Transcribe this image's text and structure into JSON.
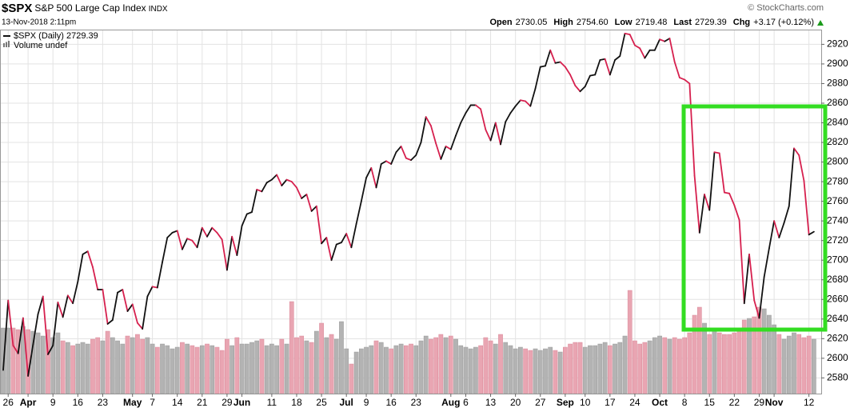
{
  "header": {
    "symbol": "$SPX",
    "name": "S&P 500 Large Cap Index",
    "exchange": "INDX",
    "timestamp": "13-Nov-2018 2:11pm",
    "credit": "© StockCharts.com",
    "quote": [
      {
        "label": "Open",
        "value": "2730.05"
      },
      {
        "label": "High",
        "value": "2754.60"
      },
      {
        "label": "Low",
        "value": "2719.48"
      },
      {
        "label": "Last",
        "value": "2729.39"
      },
      {
        "label": "Chg",
        "value": "+3.17 (+0.12%)"
      }
    ]
  },
  "chart_data": {
    "type": "line",
    "categories": [
      null,
      "26",
      null,
      null,
      null,
      "Apr",
      null,
      null,
      null,
      null,
      "9",
      null,
      null,
      null,
      null,
      "16",
      null,
      null,
      null,
      null,
      "23",
      null,
      null,
      null,
      null,
      null,
      "May",
      null,
      null,
      null,
      "7",
      null,
      null,
      null,
      null,
      "14",
      null,
      null,
      null,
      null,
      "21",
      null,
      null,
      null,
      null,
      "29",
      null,
      null,
      "Jun",
      null,
      null,
      null,
      null,
      null,
      "11",
      null,
      null,
      null,
      null,
      "18",
      null,
      null,
      null,
      null,
      "25",
      null,
      null,
      null,
      null,
      "Jul",
      null,
      null,
      null,
      "9",
      null,
      null,
      null,
      null,
      "16",
      null,
      null,
      null,
      null,
      "23",
      null,
      null,
      null,
      null,
      null,
      null,
      "Aug",
      null,
      null,
      "6",
      null,
      null,
      null,
      null,
      "13",
      null,
      null,
      null,
      null,
      "20",
      null,
      null,
      null,
      null,
      "27",
      null,
      null,
      null,
      null,
      "Sep",
      null,
      null,
      null,
      "10",
      null,
      null,
      null,
      null,
      "17",
      null,
      null,
      null,
      null,
      "24",
      null,
      null,
      null,
      null,
      "Oct",
      null,
      null,
      null,
      null,
      "8",
      null,
      null,
      null,
      null,
      "15",
      null,
      null,
      null,
      null,
      "22",
      null,
      null,
      null,
      null,
      "29",
      null,
      null,
      "Nov",
      null,
      null,
      null,
      null,
      null,
      null,
      "12",
      null
    ],
    "series": [
      {
        "name": "$SPX (Daily) 2729.39",
        "color": "#111111",
        "down_color": "#d6204e",
        "values": [
          2588,
          2659,
          2613,
          2605,
          2641,
          2582,
          2614,
          2645,
          2663,
          2604,
          2613,
          2657,
          2642,
          2664,
          2656,
          2678,
          2706,
          2709,
          2693,
          2670,
          2670,
          2635,
          2639,
          2667,
          2670,
          2648,
          2655,
          2636,
          2630,
          2663,
          2673,
          2672,
          2698,
          2723,
          2728,
          2730,
          2711,
          2722,
          2720,
          2713,
          2733,
          2724,
          2733,
          2728,
          2721,
          2690,
          2724,
          2705,
          2735,
          2747,
          2749,
          2772,
          2770,
          2779,
          2782,
          2787,
          2776,
          2782,
          2780,
          2774,
          2763,
          2767,
          2750,
          2755,
          2717,
          2723,
          2700,
          2716,
          2718,
          2727,
          2713,
          2737,
          2760,
          2784,
          2794,
          2774,
          2798,
          2801,
          2798,
          2810,
          2816,
          2804,
          2802,
          2807,
          2820,
          2846,
          2837,
          2819,
          2803,
          2816,
          2813,
          2827,
          2840,
          2850,
          2858,
          2858,
          2854,
          2833,
          2822,
          2840,
          2818,
          2841,
          2850,
          2857,
          2863,
          2862,
          2857,
          2875,
          2897,
          2898,
          2914,
          2901,
          2902,
          2897,
          2889,
          2878,
          2872,
          2877,
          2888,
          2889,
          2904,
          2905,
          2889,
          2904,
          2908,
          2931,
          2930,
          2919,
          2916,
          2906,
          2914,
          2914,
          2925,
          2923,
          2926,
          2902,
          2886,
          2884,
          2880,
          2786,
          2728,
          2767,
          2751,
          2810,
          2809,
          2769,
          2768,
          2756,
          2741,
          2656,
          2706,
          2659,
          2641,
          2683,
          2712,
          2740,
          2723,
          2738,
          2755,
          2814,
          2807,
          2781,
          2726,
          2729
        ]
      },
      {
        "name": "Volume undef",
        "type": "bar",
        "axis": "y2",
        "color": "#b3b3b3",
        "down_color": "#e9a5b2",
        "values": [
          82,
          82,
          82,
          80,
          84,
          80,
          78,
          76,
          72,
          80,
          70,
          76,
          66,
          64,
          60,
          62,
          64,
          62,
          68,
          70,
          66,
          78,
          70,
          66,
          62,
          72,
          70,
          74,
          68,
          70,
          62,
          58,
          62,
          60,
          56,
          58,
          64,
          62,
          60,
          58,
          60,
          62,
          60,
          58,
          54,
          68,
          60,
          70,
          62,
          62,
          64,
          66,
          68,
          60,
          62,
          60,
          68,
          62,
          115,
          70,
          72,
          66,
          64,
          78,
          88,
          70,
          74,
          68,
          90,
          56,
          37,
          52,
          56,
          58,
          60,
          66,
          64,
          58,
          56,
          60,
          62,
          60,
          62,
          60,
          66,
          72,
          68,
          70,
          74,
          70,
          72,
          68,
          60,
          58,
          56,
          58,
          60,
          70,
          66,
          62,
          74,
          64,
          60,
          56,
          58,
          56,
          54,
          56,
          54,
          56,
          58,
          54,
          52,
          58,
          62,
          64,
          64,
          58,
          60,
          60,
          62,
          64,
          60,
          62,
          64,
          72,
          129,
          66,
          62,
          64,
          66,
          70,
          72,
          70,
          68,
          70,
          68,
          70,
          76,
          98,
          108,
          88,
          74,
          78,
          76,
          74,
          74,
          76,
          82,
          92,
          94,
          96,
          108,
          106,
          98,
          86,
          74,
          68,
          72,
          76,
          74,
          70,
          72,
          68
        ]
      }
    ],
    "ylim": [
      2564,
      2935
    ],
    "yticks": [
      2580,
      2600,
      2620,
      2640,
      2660,
      2680,
      2700,
      2720,
      2740,
      2760,
      2780,
      2800,
      2820,
      2840,
      2860,
      2880,
      2900,
      2920
    ],
    "y2lim": [
      0,
      455
    ],
    "grid": true,
    "legend": "upper left"
  }
}
